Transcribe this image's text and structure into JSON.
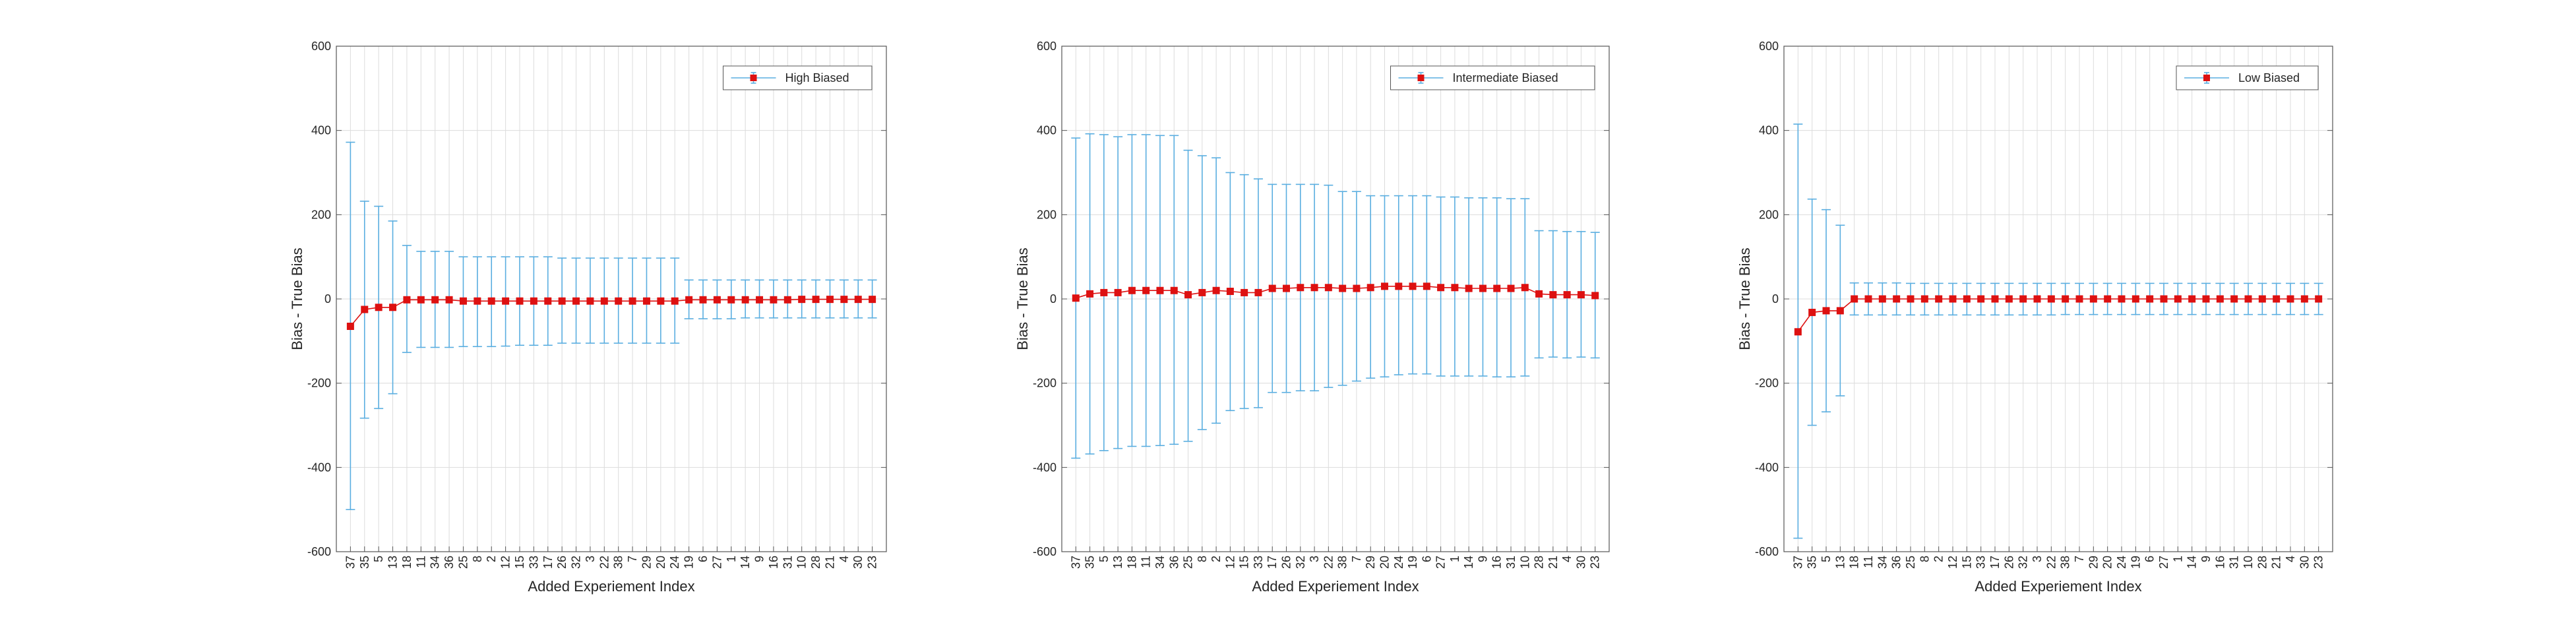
{
  "chart_data": [
    {
      "type": "errorbar",
      "xlabel": "Added Experiement Index",
      "ylabel": "Bias - True Bias",
      "ylim": [
        -600,
        600
      ],
      "yticks": [
        -600,
        -400,
        -200,
        0,
        200,
        400,
        600
      ],
      "grid": true,
      "legend_position": "top-right",
      "categories": [
        "37",
        "35",
        "5",
        "13",
        "18",
        "11",
        "34",
        "36",
        "25",
        "8",
        "2",
        "12",
        "15",
        "33",
        "17",
        "26",
        "32",
        "3",
        "22",
        "38",
        "7",
        "29",
        "20",
        "24",
        "19",
        "6",
        "27",
        "1",
        "14",
        "9",
        "16",
        "31",
        "10",
        "28",
        "21",
        "4",
        "30",
        "23"
      ],
      "series": [
        {
          "name": "High Biased",
          "values": [
            -65,
            -25,
            -20,
            -20,
            -2,
            -2,
            -2,
            -2,
            -5,
            -5,
            -5,
            -5,
            -5,
            -5,
            -5,
            -5,
            -5,
            -5,
            -5,
            -5,
            -5,
            -5,
            -5,
            -5,
            -2,
            -2,
            -2,
            -2,
            -2,
            -2,
            -2,
            -2,
            -1,
            -1,
            -1,
            -1,
            -1,
            -1
          ],
          "upper": [
            372,
            232,
            220,
            185,
            127,
            113,
            113,
            113,
            100,
            100,
            100,
            100,
            100,
            100,
            100,
            97,
            97,
            97,
            97,
            97,
            97,
            97,
            97,
            97,
            45,
            45,
            45,
            45,
            45,
            45,
            45,
            45,
            45,
            45,
            45,
            45,
            45,
            45
          ],
          "lower": [
            -500,
            -283,
            -260,
            -225,
            -127,
            -115,
            -115,
            -115,
            -113,
            -113,
            -113,
            -112,
            -110,
            -110,
            -110,
            -105,
            -105,
            -105,
            -105,
            -105,
            -105,
            -105,
            -105,
            -105,
            -47,
            -47,
            -47,
            -47,
            -45,
            -45,
            -45,
            -45,
            -45,
            -45,
            -45,
            -45,
            -45,
            -45
          ]
        }
      ]
    },
    {
      "type": "errorbar",
      "xlabel": "Added Experiement Index",
      "ylabel": "Bias - True Bias",
      "ylim": [
        -600,
        600
      ],
      "yticks": [
        -600,
        -400,
        -200,
        0,
        200,
        400,
        600
      ],
      "grid": true,
      "legend_position": "top-right",
      "categories": [
        "37",
        "35",
        "5",
        "13",
        "18",
        "11",
        "34",
        "36",
        "25",
        "8",
        "2",
        "12",
        "15",
        "33",
        "17",
        "26",
        "32",
        "3",
        "22",
        "38",
        "7",
        "29",
        "20",
        "24",
        "19",
        "6",
        "27",
        "1",
        "14",
        "9",
        "16",
        "31",
        "10",
        "28",
        "21",
        "4",
        "30",
        "23"
      ],
      "series": [
        {
          "name": "Intermediate Biased",
          "values": [
            2,
            12,
            15,
            15,
            20,
            20,
            20,
            20,
            10,
            15,
            20,
            18,
            15,
            15,
            25,
            25,
            27,
            27,
            27,
            25,
            25,
            27,
            30,
            30,
            30,
            30,
            27,
            27,
            25,
            25,
            25,
            25,
            27,
            12,
            10,
            10,
            10,
            8
          ],
          "upper": [
            382,
            392,
            390,
            385,
            390,
            390,
            388,
            388,
            353,
            340,
            335,
            300,
            295,
            285,
            272,
            272,
            272,
            272,
            270,
            255,
            255,
            245,
            245,
            245,
            245,
            245,
            242,
            242,
            240,
            240,
            240,
            238,
            238,
            162,
            162,
            160,
            160,
            158
          ],
          "lower": [
            -378,
            -368,
            -360,
            -355,
            -350,
            -350,
            -348,
            -345,
            -338,
            -310,
            -295,
            -265,
            -260,
            -258,
            -222,
            -222,
            -218,
            -218,
            -210,
            -205,
            -195,
            -188,
            -185,
            -180,
            -178,
            -178,
            -183,
            -183,
            -183,
            -183,
            -185,
            -185,
            -183,
            -140,
            -138,
            -140,
            -138,
            -140
          ]
        }
      ]
    },
    {
      "type": "errorbar",
      "xlabel": "Added Experiement Index",
      "ylabel": "Bias - True Bias",
      "ylim": [
        -600,
        600
      ],
      "yticks": [
        -600,
        -400,
        -200,
        0,
        200,
        400,
        600
      ],
      "grid": true,
      "legend_position": "top-right",
      "categories": [
        "37",
        "35",
        "5",
        "13",
        "18",
        "11",
        "34",
        "36",
        "25",
        "8",
        "2",
        "12",
        "15",
        "33",
        "17",
        "26",
        "32",
        "3",
        "22",
        "38",
        "7",
        "29",
        "20",
        "24",
        "19",
        "6",
        "27",
        "1",
        "14",
        "9",
        "16",
        "31",
        "10",
        "28",
        "21",
        "4",
        "30",
        "23"
      ],
      "series": [
        {
          "name": "Low Biased",
          "values": [
            -78,
            -32,
            -28,
            -28,
            0,
            0,
            0,
            0,
            0,
            0,
            0,
            0,
            0,
            0,
            0,
            0,
            0,
            0,
            0,
            0,
            0,
            0,
            0,
            0,
            0,
            0,
            0,
            0,
            0,
            0,
            0,
            0,
            0,
            0,
            0,
            0,
            0,
            0
          ],
          "upper": [
            415,
            237,
            212,
            175,
            38,
            38,
            38,
            38,
            37,
            37,
            37,
            37,
            37,
            37,
            37,
            37,
            37,
            37,
            37,
            37,
            37,
            37,
            37,
            37,
            37,
            37,
            37,
            37,
            37,
            37,
            37,
            37,
            37,
            37,
            37,
            37,
            37,
            37
          ],
          "lower": [
            -568,
            -300,
            -268,
            -230,
            -38,
            -38,
            -38,
            -38,
            -38,
            -38,
            -38,
            -38,
            -38,
            -38,
            -38,
            -38,
            -38,
            -38,
            -38,
            -37,
            -37,
            -37,
            -37,
            -37,
            -37,
            -37,
            -37,
            -37,
            -37,
            -37,
            -37,
            -37,
            -37,
            -37,
            -37,
            -37,
            -37,
            -37
          ]
        }
      ]
    }
  ],
  "colors": {
    "errorbar": "#5aaee0",
    "marker": "#dd1111",
    "line": "#dd1111",
    "grid": "#dcdcdc",
    "axis": "#555555",
    "text": "#262626"
  }
}
